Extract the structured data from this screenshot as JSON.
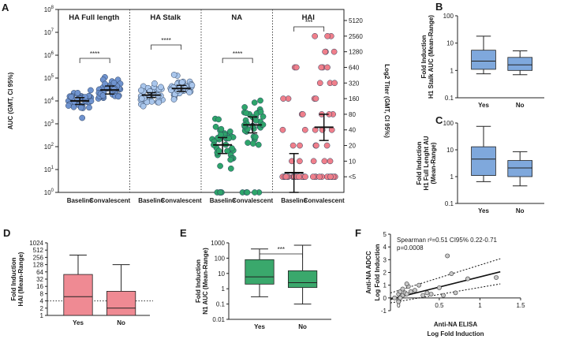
{
  "colors": {
    "blue": "#6f93cf",
    "light_blue": "#a9c6ec",
    "green": "#2ea56b",
    "pink": "#f07f8b",
    "box_blue": "#7fa8dc",
    "box_pink": "#ef8a93",
    "box_green": "#3aa86c",
    "gray_point": "#c8c8c8"
  },
  "panels": {
    "A": "A",
    "B": "B",
    "C": "C",
    "D": "D",
    "E": "E",
    "F": "F"
  },
  "chart_data": [
    {
      "id": "A",
      "type": "scatter",
      "title": "",
      "ylabel": "AUC (GMT, CI 95%)",
      "y2label": "Log2 Titer (GMT, CI 95%)",
      "ylim": [
        1,
        100000000
      ],
      "yscale": "log10",
      "yticks": [
        "10^0",
        "10^1",
        "10^2",
        "10^3",
        "10^4",
        "10^5",
        "10^6",
        "10^7",
        "10^8"
      ],
      "y2ticks": [
        "<5",
        "10",
        "20",
        "40",
        "80",
        "160",
        "320",
        "640",
        "1280",
        "2560",
        "5120"
      ],
      "groups": [
        {
          "name": "HA Full length",
          "categories": [
            "Baseline",
            "Convalescent"
          ],
          "significance": "****",
          "gmt": [
            10000,
            30000
          ],
          "ci": [
            [
              7000,
              14000
            ],
            [
              20000,
              45000
            ]
          ]
        },
        {
          "name": "HA Stalk",
          "categories": [
            "Baseline",
            "Convalescent"
          ],
          "significance": "****",
          "gmt": [
            18000,
            35000
          ],
          "ci": [
            [
              14000,
              23000
            ],
            [
              26000,
              48000
            ]
          ]
        },
        {
          "name": "NA",
          "categories": [
            "Baseline",
            "Convalescent"
          ],
          "significance": "****",
          "gmt": [
            120,
            900
          ],
          "ci": [
            [
              50,
              250
            ],
            [
              400,
              2000
            ]
          ]
        },
        {
          "name": "HAI",
          "categories": [
            "Baseline",
            "Convalescent"
          ],
          "significance": "***",
          "gmt_titer": [
            6,
            45
          ],
          "ci_titer": [
            [
              2.5,
              14
            ],
            [
              25,
              80
            ]
          ]
        }
      ]
    },
    {
      "id": "B",
      "type": "box",
      "ylabel": "Fold Induction\nH1 Stalk AUC (Mean-Range)",
      "ylim": [
        0.1,
        100
      ],
      "yticks": [
        "0.1",
        "1",
        "10",
        "100"
      ],
      "categories": [
        "Yes",
        "No"
      ],
      "boxes": [
        {
          "min": 0.75,
          "q1": 1.1,
          "median": 2.2,
          "q3": 5.5,
          "max": 18
        },
        {
          "min": 0.7,
          "q1": 1.0,
          "median": 1.6,
          "q3": 3.0,
          "max": 5.2
        }
      ]
    },
    {
      "id": "C",
      "type": "box",
      "ylabel": "Fold Induction\nH1 Full Lenght AU\n(Mean-Range)",
      "ylim": [
        0.1,
        100
      ],
      "yticks": [
        "0.1",
        "1",
        "10",
        "100"
      ],
      "categories": [
        "Yes",
        "No"
      ],
      "boxes": [
        {
          "min": 0.65,
          "q1": 1.1,
          "median": 4.5,
          "q3": 13,
          "max": 75
        },
        {
          "min": 0.45,
          "q1": 1.0,
          "median": 2.1,
          "q3": 4.0,
          "max": 8.5
        }
      ]
    },
    {
      "id": "D",
      "type": "box",
      "ylabel": "Fold Induction\nHAI (Mean-Range)",
      "ylim": [
        1,
        1024
      ],
      "yticks": [
        "1",
        "2",
        "4",
        "8",
        "16",
        "32",
        "64",
        "128",
        "256",
        "512",
        "1024"
      ],
      "reference_line": 4,
      "categories": [
        "Yes",
        "No"
      ],
      "boxes": [
        {
          "min": 1,
          "q1": 1,
          "median": 6,
          "q3": 50,
          "max": 320
        },
        {
          "min": 1,
          "q1": 1,
          "median": 2,
          "q3": 10,
          "max": 128
        }
      ]
    },
    {
      "id": "E",
      "type": "box",
      "ylabel": "Fold Induction\nN1 AUC (Mean-Range)",
      "ylim": [
        0.01,
        1000
      ],
      "yticks": [
        "0.01",
        "0.1",
        "1",
        "10",
        "100",
        "1000"
      ],
      "significance": "***",
      "categories": [
        "Yes",
        "No"
      ],
      "boxes": [
        {
          "min": 0.3,
          "q1": 2,
          "median": 6,
          "q3": 80,
          "max": 400
        },
        {
          "min": 0.1,
          "q1": 1.2,
          "median": 2.5,
          "q3": 15,
          "max": 700
        }
      ]
    },
    {
      "id": "F",
      "type": "scatter",
      "xlabel": "Anti-NA ELISA\nLog Fold Induction",
      "ylabel": "Anti-NA ADCC\nLog Fold Induction",
      "xlim": [
        -0.1,
        1.5
      ],
      "ylim": [
        -1,
        5
      ],
      "xticks": [
        "0",
        "0.5",
        "1",
        "1.5"
      ],
      "yticks": [
        "-1",
        "0",
        "1",
        "2",
        "3",
        "4",
        "5"
      ],
      "annotation": "Spearman r²=0.51 CI95% 0.22-0.71\np=0.0008",
      "fit": {
        "slope": 1.6,
        "intercept": 0.05
      },
      "x": [
        -0.05,
        0.0,
        0.0,
        0.02,
        0.03,
        0.05,
        0.05,
        0.08,
        0.1,
        0.12,
        0.15,
        0.2,
        0.25,
        0.3,
        0.35,
        0.4,
        0.5,
        0.55,
        0.6,
        0.65,
        0.7,
        0.85,
        1.2,
        0.0,
        0.02,
        0.1
      ],
      "y": [
        0.0,
        0.3,
        -0.2,
        0.5,
        0.1,
        0.2,
        0.7,
        0.4,
        0.3,
        0.9,
        0.5,
        0.6,
        1.0,
        0.2,
        0.4,
        0.3,
        0.8,
        0.2,
        3.3,
        1.9,
        0.4,
        1.5,
        1.6,
        -0.3,
        0.0,
        1.1
      ]
    }
  ]
}
